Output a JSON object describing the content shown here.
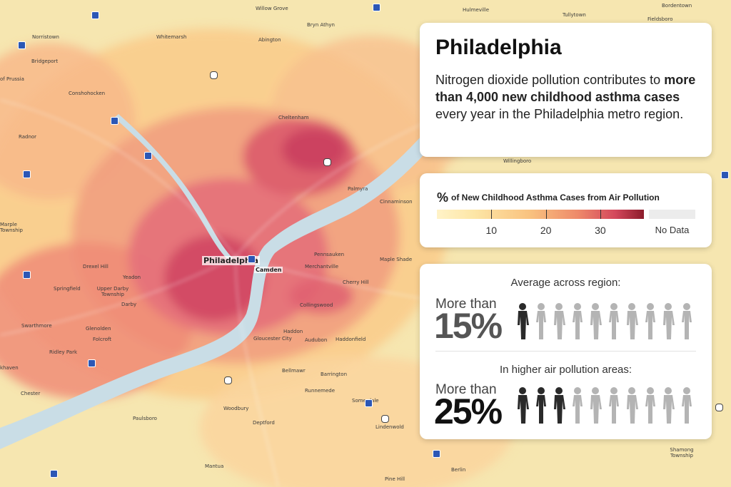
{
  "title_card": {
    "title": "Philadelphia",
    "text_before": "Nitrogen dioxide pollution contributes to ",
    "text_bold": "more than 4,000 new childhood asthma cases",
    "text_after": " every year in the Philadelphia metro region."
  },
  "legend": {
    "title_symbol": "%",
    "title": "of New Childhood Asthma Cases from Air Pollution",
    "scale_min": 0,
    "scale_max": 38,
    "ticks": [
      {
        "label": "10",
        "value": 10
      },
      {
        "label": "20",
        "value": 20
      },
      {
        "label": "30",
        "value": 30
      }
    ],
    "no_data_label": "No Data",
    "colors": [
      "#fff3c8",
      "#fde6a6",
      "#f9c27f",
      "#ee8a6a",
      "#d4485c",
      "#8c1c2b"
    ],
    "no_data_color": "#ececec"
  },
  "stats": [
    {
      "heading": "Average across region:",
      "prefix": "More than",
      "value": "15%",
      "highlighted_children": 1,
      "total_children": 10
    },
    {
      "heading": "In higher air pollution areas:",
      "prefix": "More than",
      "value": "25%",
      "highlighted_children": 3,
      "total_children": 10
    }
  ],
  "map": {
    "city_label": "Philadelphia",
    "places": [
      "Willow Grove",
      "Hulmeville",
      "Bordentown",
      "Tullytown",
      "Fieldsboro",
      "Bryn Athyn",
      "Norristown",
      "Whitemarsh",
      "Abington",
      "Bridgeport",
      "of Prussia",
      "Conshohocken",
      "Radnor",
      "Cheltenham",
      "Willingboro",
      "Palmyra",
      "Cinnaminson",
      "Marple Township",
      "Pennsauken",
      "Merchantville",
      "Maple Shade",
      "Camden",
      "Drexel Hill",
      "Yeadon",
      "Springfield",
      "Upper Darby Township",
      "Darby",
      "Cherry Hill",
      "Collingswood",
      "Swarthmore",
      "Glenolden",
      "Folcroft",
      "Haddon",
      "Gloucester City",
      "Audubon",
      "Haddonfield",
      "Ridley Park",
      "Bellmawr",
      "Barrington",
      "Runnemede",
      "Somerdale",
      "Chester",
      "Woodbury",
      "Lindenwold",
      "Paulsboro",
      "Deptford",
      "Mantua",
      "Pine Hill",
      "Berlin",
      "Shamong Township",
      "khaven"
    ],
    "highway_shields": [
      "95",
      "76",
      "476",
      "611",
      "309",
      "1",
      "13",
      "73",
      "38",
      "130",
      "30",
      "70",
      "295",
      "42",
      "55",
      "322",
      "47",
      "420",
      "532",
      "206",
      "206",
      "561",
      "168",
      "322",
      "55"
    ],
    "map_colors": {
      "water": "#c9dde6",
      "land": "#f7e8b4",
      "low": "#fbd49a",
      "mid": "#f4a784",
      "high": "#e26e74",
      "peak": "#c63c5c"
    }
  }
}
